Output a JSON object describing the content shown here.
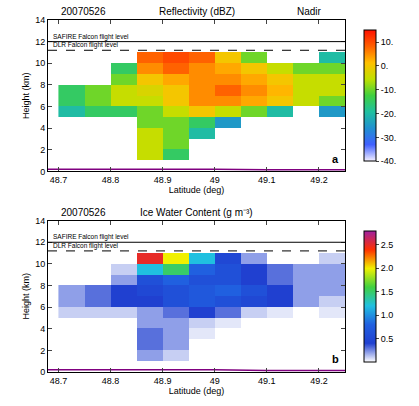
{
  "chart_data": [
    {
      "type": "heatmap",
      "panel": "a",
      "date": "20070526",
      "title": "Reflectivity (dBZ)",
      "subtitle": "Nadir",
      "x_label": "Latitude (deg)",
      "y_label": "Height (km)",
      "x": [
        48.725,
        48.775,
        48.825,
        48.875,
        48.925,
        48.975,
        49.025,
        49.075,
        49.125,
        49.175,
        49.225
      ],
      "y": [
        0.5,
        1.5,
        2.5,
        3.5,
        4.5,
        5.5,
        6.5,
        7.5,
        8.5,
        9.5,
        10.5,
        11.5,
        12.5,
        13.5
      ],
      "cells": [
        [
          null,
          null,
          null,
          null,
          null,
          null,
          null,
          null,
          null,
          null,
          null
        ],
        [
          null,
          null,
          null,
          -5,
          -15,
          null,
          null,
          null,
          null,
          null,
          null
        ],
        [
          null,
          null,
          null,
          -5,
          -10,
          null,
          null,
          null,
          null,
          null,
          null
        ],
        [
          null,
          null,
          null,
          -5,
          -10,
          -20,
          null,
          null,
          null,
          null,
          null
        ],
        [
          null,
          null,
          null,
          -10,
          -10,
          -15,
          -25,
          null,
          null,
          null,
          null
        ],
        [
          -20,
          -15,
          -15,
          -10,
          -5,
          0,
          -5,
          -10,
          -20,
          null,
          -25
        ],
        [
          -15,
          -10,
          -5,
          -5,
          0,
          5,
          5,
          3,
          0,
          -5,
          -10
        ],
        [
          -15,
          -10,
          -5,
          -3,
          0,
          5,
          8,
          5,
          2,
          -5,
          -5
        ],
        [
          null,
          null,
          -10,
          0,
          3,
          5,
          5,
          3,
          0,
          -5,
          -5
        ],
        [
          null,
          null,
          -15,
          5,
          8,
          5,
          3,
          0,
          -5,
          -10,
          -10
        ],
        [
          null,
          null,
          null,
          8,
          10,
          8,
          0,
          -10,
          null,
          null,
          -20
        ],
        [
          null,
          null,
          null,
          null,
          null,
          null,
          null,
          null,
          null,
          null,
          null
        ],
        [
          null,
          null,
          null,
          null,
          null,
          null,
          null,
          null,
          null,
          null,
          null
        ],
        [
          null,
          null,
          null,
          null,
          null,
          null,
          null,
          null,
          null,
          null,
          null
        ]
      ],
      "xlim": [
        48.68,
        49.25
      ],
      "xticks": [
        48.7,
        48.8,
        48.9,
        49.0,
        49.1,
        49.2
      ],
      "ylim": [
        0,
        14
      ],
      "yticks": [
        0,
        2,
        4,
        6,
        8,
        10,
        12,
        14
      ],
      "colorbar": {
        "range": [
          -40,
          15
        ],
        "ticks": [
          {
            "value": -40,
            "label": "-40."
          },
          {
            "value": -30,
            "label": "-30."
          },
          {
            "value": -20,
            "label": "-20."
          },
          {
            "value": -10,
            "label": "-10."
          },
          {
            "value": 0,
            "label": "0."
          },
          {
            "value": 10,
            "label": "10."
          }
        ],
        "colors": [
          "#f4f0ff",
          "#4060ff",
          "#2090d0",
          "#20c0a0",
          "#40d040",
          "#c0e000",
          "#ffc000",
          "#ff6000",
          "#ff1000"
        ]
      },
      "flight_levels": [
        {
          "label": "SAFIRE Falcon flight level",
          "height": 12,
          "line_style": "solid"
        },
        {
          "label": "DLR Falcon flight level",
          "height": 11.2,
          "line_style": "dashed"
        }
      ],
      "surface": {
        "x": [
          48.68,
          48.8,
          48.9,
          49.0,
          49.1,
          49.25
        ],
        "y": [
          0.2,
          0.2,
          0.25,
          0.2,
          0.15,
          0.15
        ],
        "color": "#800080"
      }
    },
    {
      "type": "heatmap",
      "panel": "b",
      "date": "20070526",
      "title": "Ice Water Content (g m⁻³)",
      "x_label": "Latitude (deg)",
      "y_label": "Height (km)",
      "x": [
        48.725,
        48.775,
        48.825,
        48.875,
        48.925,
        48.975,
        49.025,
        49.075,
        49.125,
        49.175,
        49.225
      ],
      "y": [
        0.5,
        1.5,
        2.5,
        3.5,
        4.5,
        5.5,
        6.5,
        7.5,
        8.5,
        9.5,
        10.5,
        11.5,
        12.5,
        13.5
      ],
      "cells": [
        [
          null,
          null,
          null,
          null,
          null,
          null,
          null,
          null,
          null,
          null,
          null
        ],
        [
          null,
          null,
          null,
          0.2,
          0.1,
          null,
          null,
          null,
          null,
          null,
          null
        ],
        [
          null,
          null,
          null,
          0.3,
          0.2,
          null,
          null,
          null,
          null,
          null,
          null
        ],
        [
          null,
          null,
          null,
          0.3,
          0.2,
          0.05,
          null,
          null,
          null,
          null,
          null
        ],
        [
          null,
          null,
          null,
          0.2,
          0.2,
          0.1,
          0.05,
          null,
          null,
          null,
          null
        ],
        [
          0.1,
          0.1,
          0.1,
          0.2,
          0.3,
          0.4,
          0.3,
          0.1,
          0.05,
          null,
          0.05
        ],
        [
          0.2,
          0.3,
          0.4,
          0.4,
          0.6,
          0.7,
          0.6,
          0.5,
          0.4,
          0.2,
          0.1
        ],
        [
          0.2,
          0.3,
          0.4,
          0.5,
          0.6,
          0.7,
          0.8,
          0.6,
          0.4,
          0.2,
          0.2
        ],
        [
          null,
          null,
          0.2,
          0.6,
          0.8,
          0.6,
          0.6,
          0.4,
          0.3,
          0.2,
          0.2
        ],
        [
          null,
          null,
          0.1,
          1.2,
          1.5,
          0.8,
          0.6,
          0.4,
          0.3,
          0.2,
          0.2
        ],
        [
          null,
          null,
          null,
          2.5,
          2.0,
          1.2,
          0.5,
          0.2,
          null,
          null,
          0.1
        ],
        [
          null,
          null,
          null,
          null,
          null,
          null,
          null,
          null,
          null,
          null,
          null
        ],
        [
          null,
          null,
          null,
          null,
          null,
          null,
          null,
          null,
          null,
          null,
          null
        ],
        [
          null,
          null,
          null,
          null,
          null,
          null,
          null,
          null,
          null,
          null,
          null
        ]
      ],
      "xlim": [
        48.68,
        49.25
      ],
      "xticks": [
        48.7,
        48.8,
        48.9,
        49.0,
        49.1,
        49.2
      ],
      "ylim": [
        0,
        14
      ],
      "yticks": [
        0,
        2,
        4,
        6,
        8,
        10,
        12,
        14
      ],
      "colorbar": {
        "range": [
          0,
          2.8
        ],
        "ticks": [
          0.5,
          {
            "value": 1,
            "label": "1.0"
          },
          1.5,
          {
            "value": 2,
            "label": "2.0"
          },
          2.5
        ],
        "colors": [
          "#ffffff",
          "#2040d0",
          "#2060e0",
          "#20c0e0",
          "#40d040",
          "#f0f000",
          "#ff3000",
          "#a020a0"
        ]
      },
      "flight_levels": [
        {
          "label": "SAFIRE Falcon flight level",
          "height": 12,
          "line_style": "solid"
        },
        {
          "label": "DLR Falcon flight level",
          "height": 11.2,
          "line_style": "dashed"
        }
      ],
      "surface": {
        "x": [
          48.68,
          48.8,
          48.9,
          49.0,
          49.1,
          49.25
        ],
        "y": [
          0.2,
          0.2,
          0.25,
          0.2,
          0.15,
          0.15
        ],
        "color": "#800080"
      }
    }
  ]
}
